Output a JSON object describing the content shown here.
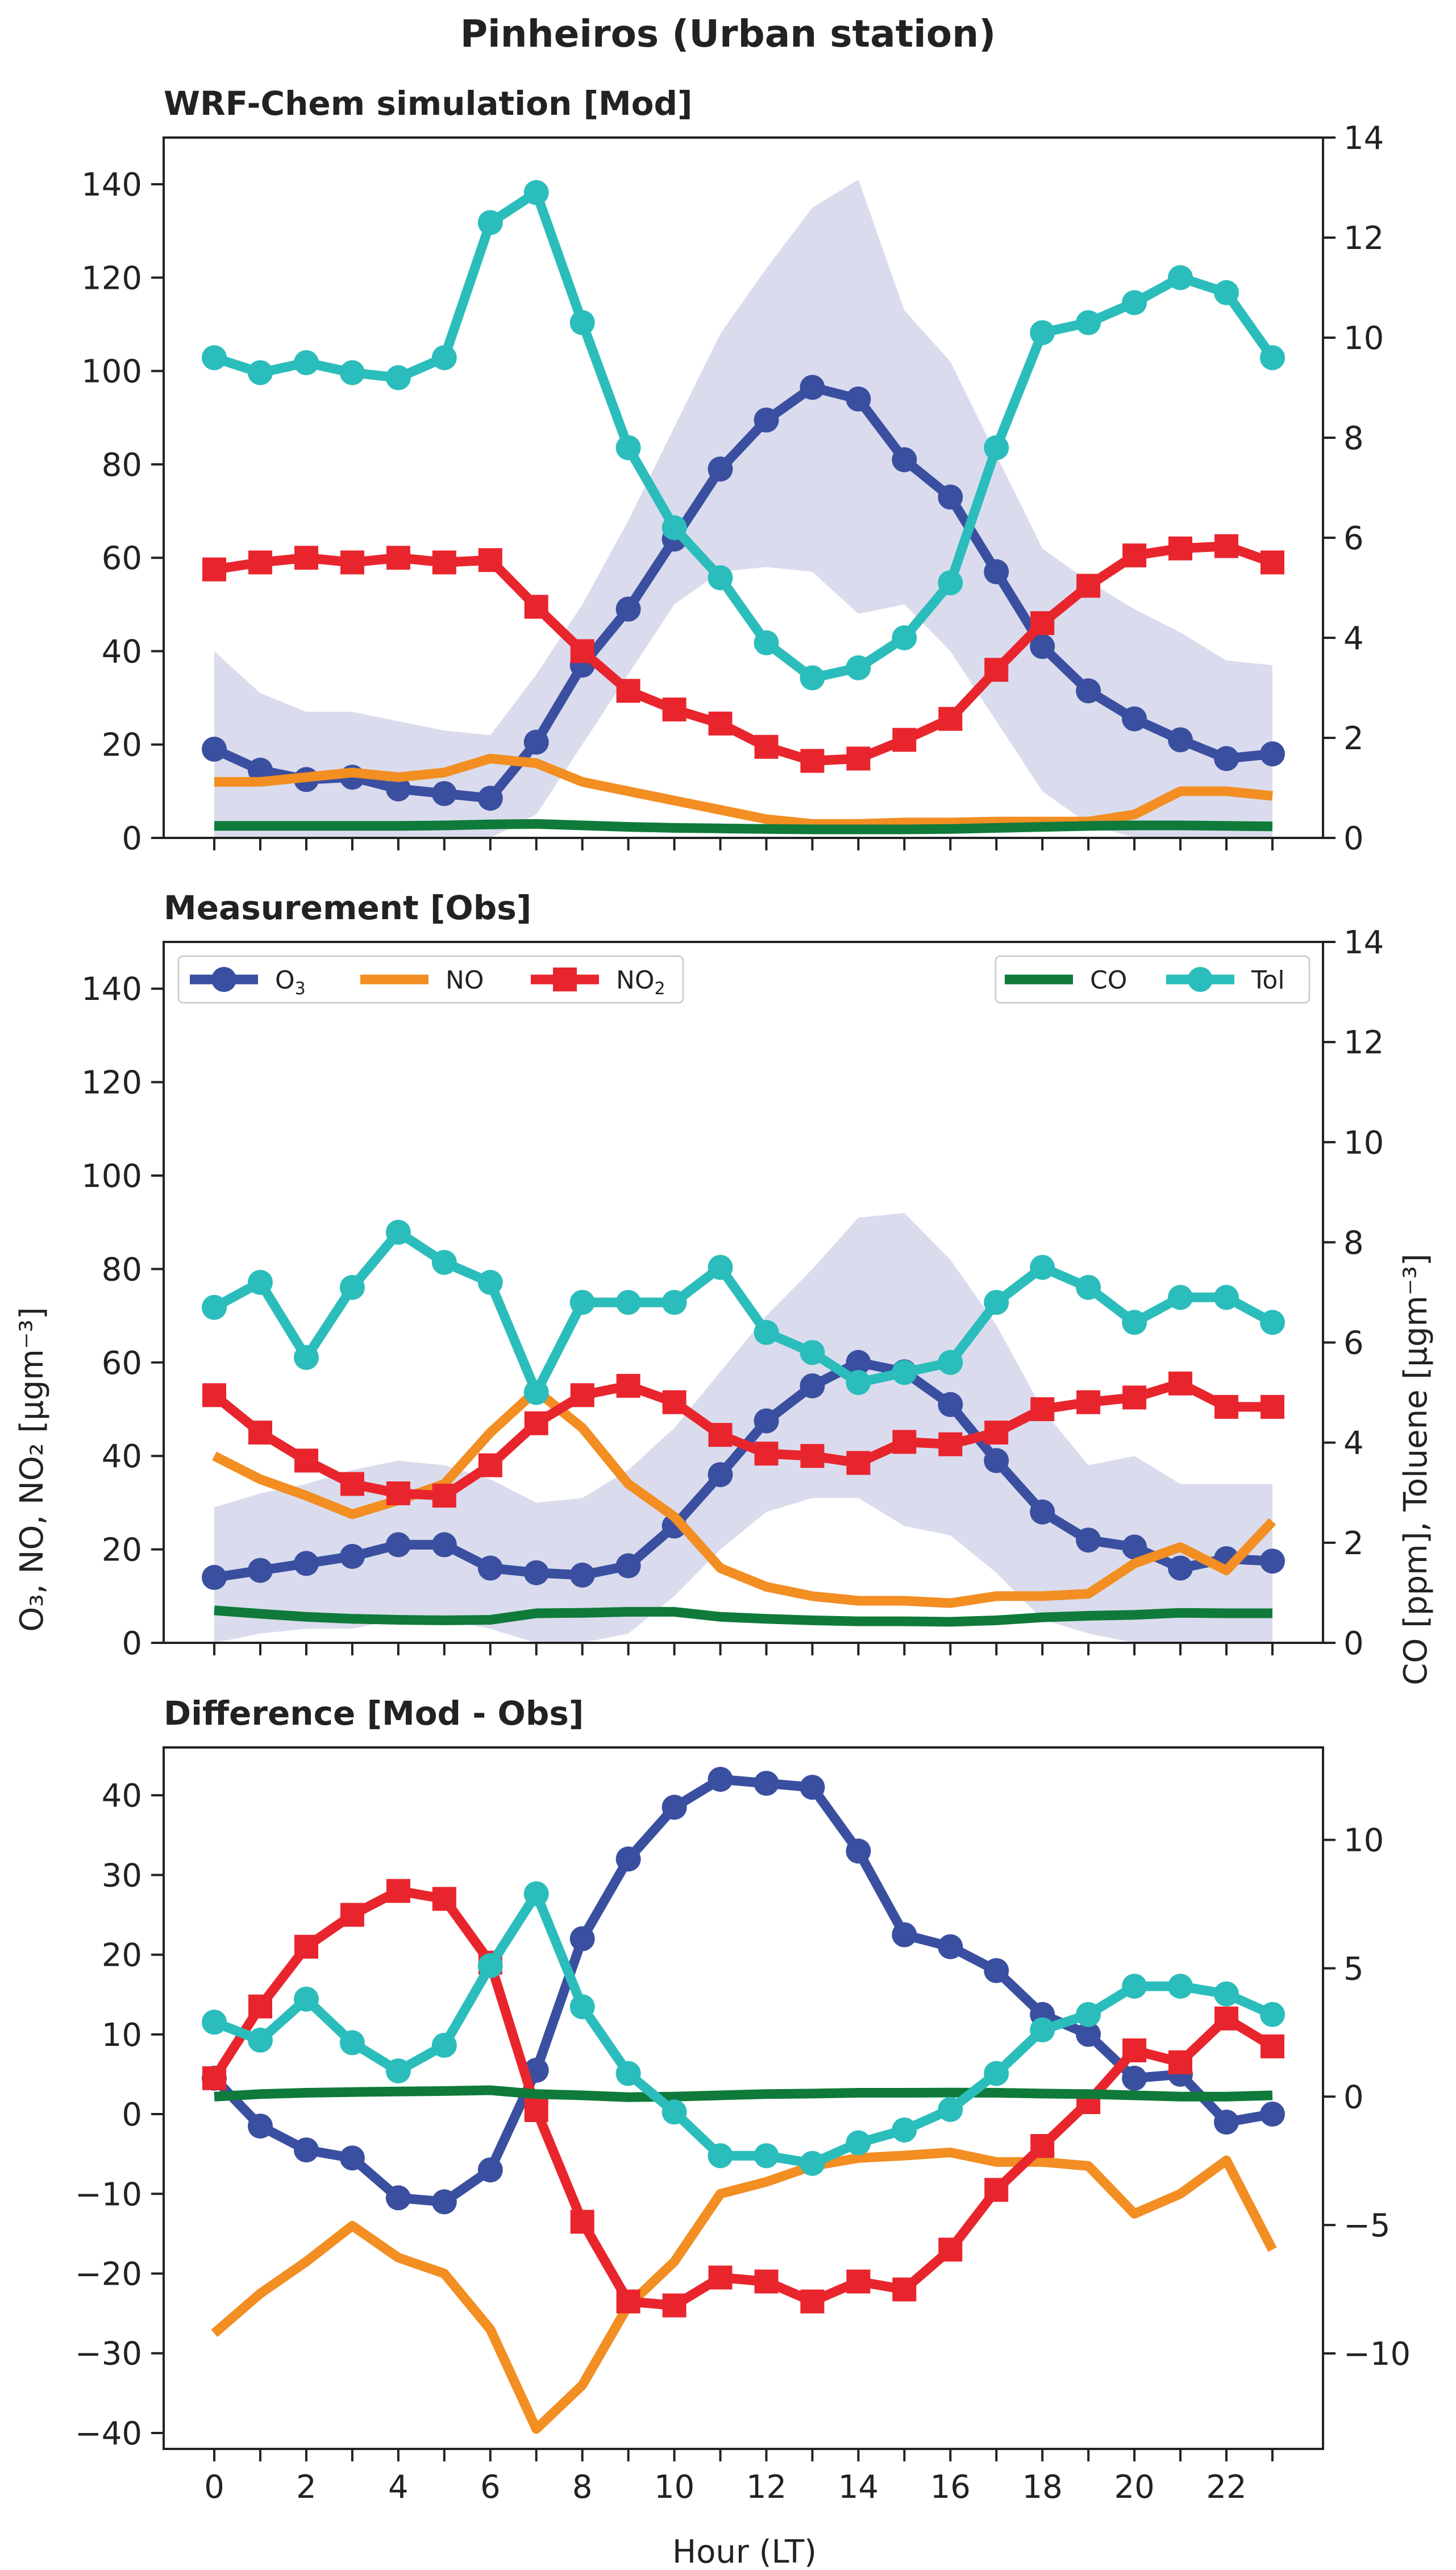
{
  "figure_title": "Pinheiros (Urban station)",
  "colors": {
    "O3": "#3a4fa0",
    "NO": "#f28e22",
    "NO2": "#e8252d",
    "CO": "#0f7a3a",
    "Tol": "#2bbdbb",
    "band": "#dadcee"
  },
  "legend": [
    {
      "key": "O3",
      "label": "O",
      "sub": "3",
      "marker": "circle"
    },
    {
      "key": "NO",
      "label": "NO",
      "sub": "",
      "marker": "none"
    },
    {
      "key": "NO2",
      "label": "NO",
      "sub": "2",
      "marker": "square"
    },
    {
      "key": "CO",
      "label": "CO",
      "sub": "",
      "marker": "none"
    },
    {
      "key": "Tol",
      "label": "Tol",
      "sub": "",
      "marker": "circle"
    }
  ],
  "shared_labels": {
    "xlabel": "Hour (LT)",
    "ylabel_left": "O₃, NO, NO₂ [μgm⁻³]",
    "ylabel_right": "CO [ppm], Toluene [μgm⁻³]"
  },
  "chart_data": [
    {
      "type": "line",
      "title": "WRF-Chem simulation [Mod]",
      "xlabel": "Hour (LT)",
      "x": [
        0,
        1,
        2,
        3,
        4,
        5,
        6,
        7,
        8,
        9,
        10,
        11,
        12,
        13,
        14,
        15,
        16,
        17,
        18,
        19,
        20,
        21,
        22,
        23
      ],
      "xlim": [
        -1.1,
        24.1
      ],
      "xticks": [
        0,
        2,
        4,
        6,
        8,
        10,
        12,
        14,
        16,
        18,
        20,
        22
      ],
      "ylim_left": [
        0,
        150
      ],
      "yticks_left": [
        0,
        20,
        40,
        60,
        80,
        100,
        120,
        140
      ],
      "ylim_right": [
        0,
        14
      ],
      "yticks_right": [
        0,
        2,
        4,
        6,
        8,
        10,
        12,
        14
      ],
      "band": {
        "series": "O3",
        "lower": [
          0,
          0,
          0,
          0,
          0,
          0,
          0,
          5,
          20,
          35,
          50,
          57,
          58,
          57,
          48,
          50,
          40,
          25,
          10,
          3,
          0,
          0,
          0,
          0
        ],
        "upper": [
          40,
          31,
          27,
          27,
          25,
          23,
          22,
          35,
          50,
          68,
          88,
          108,
          122,
          135,
          141,
          113,
          102,
          82,
          62,
          55,
          49,
          44,
          38,
          37
        ]
      },
      "series": [
        {
          "name": "O3",
          "axis": "left",
          "marker": "circle",
          "values": [
            19,
            14.5,
            12.5,
            13,
            10.5,
            9.5,
            8.5,
            20.5,
            37,
            49,
            64,
            79,
            89.5,
            96.5,
            94,
            81,
            73,
            57,
            41,
            31.5,
            25.5,
            21,
            17,
            18
          ]
        },
        {
          "name": "NO",
          "axis": "left",
          "marker": "none",
          "values": [
            12,
            12,
            13,
            14,
            13,
            14,
            17,
            16,
            12,
            10,
            8,
            6,
            4,
            3,
            3,
            3.3,
            3.3,
            3.5,
            3.5,
            3.5,
            5,
            10,
            10,
            9
          ]
        },
        {
          "name": "NO2",
          "axis": "left",
          "marker": "square",
          "values": [
            57.5,
            59,
            60,
            59,
            60,
            59,
            59.5,
            49.5,
            40,
            31.5,
            27.5,
            24.5,
            19.5,
            16.5,
            17,
            21,
            25.5,
            36,
            46,
            54,
            60.5,
            62,
            62.5,
            59
          ]
        },
        {
          "name": "CO",
          "axis": "right",
          "marker": "none",
          "values": [
            0.24,
            0.24,
            0.24,
            0.24,
            0.24,
            0.25,
            0.27,
            0.28,
            0.25,
            0.22,
            0.2,
            0.19,
            0.18,
            0.17,
            0.17,
            0.17,
            0.18,
            0.2,
            0.22,
            0.24,
            0.25,
            0.25,
            0.24,
            0.23
          ]
        },
        {
          "name": "Tol",
          "axis": "right",
          "marker": "circle",
          "values": [
            9.6,
            9.3,
            9.5,
            9.3,
            9.2,
            9.6,
            12.3,
            12.9,
            10.3,
            7.8,
            6.2,
            5.2,
            3.9,
            3.2,
            3.4,
            4.0,
            5.1,
            7.8,
            10.1,
            10.3,
            10.7,
            11.2,
            10.9,
            9.6
          ]
        }
      ]
    },
    {
      "type": "line",
      "title": "Measurement [Obs]",
      "ylabel_left": "O₃, NO, NO₂ [μgm⁻³]",
      "ylabel_right": "CO [ppm], Toluene [μgm⁻³]",
      "x": [
        0,
        1,
        2,
        3,
        4,
        5,
        6,
        7,
        8,
        9,
        10,
        11,
        12,
        13,
        14,
        15,
        16,
        17,
        18,
        19,
        20,
        21,
        22,
        23
      ],
      "xlim": [
        -1.1,
        24.1
      ],
      "xticks": [
        0,
        2,
        4,
        6,
        8,
        10,
        12,
        14,
        16,
        18,
        20,
        22
      ],
      "ylim_left": [
        0,
        150
      ],
      "yticks_left": [
        0,
        20,
        40,
        60,
        80,
        100,
        120,
        140
      ],
      "ylim_right": [
        0,
        14
      ],
      "yticks_right": [
        0,
        2,
        4,
        6,
        8,
        10,
        12,
        14
      ],
      "legend_position": "top",
      "band": {
        "series": "O3",
        "lower": [
          0,
          2,
          3,
          3,
          5,
          5,
          3,
          0,
          0,
          2,
          10,
          20,
          28,
          31,
          31,
          25,
          23,
          15,
          5,
          2,
          0,
          0,
          0,
          0
        ],
        "upper": [
          29,
          32,
          34,
          37,
          39,
          38,
          35,
          30,
          31,
          37,
          46,
          58,
          70,
          80,
          91,
          92,
          82,
          68,
          50,
          38,
          40,
          34,
          34,
          34
        ]
      },
      "series": [
        {
          "name": "O3",
          "axis": "left",
          "marker": "circle",
          "values": [
            14,
            15.5,
            17,
            18.5,
            21,
            21,
            16,
            15,
            14.5,
            16.5,
            25,
            36,
            47.5,
            55,
            60,
            58,
            51,
            39,
            28,
            22,
            20.5,
            16,
            18,
            17.5
          ]
        },
        {
          "name": "NO",
          "axis": "left",
          "marker": "none",
          "values": [
            40,
            35,
            31.5,
            27.5,
            30.5,
            34,
            45,
            54,
            46,
            34,
            27,
            16,
            12,
            10,
            9,
            9,
            8.5,
            10,
            10,
            10.5,
            17,
            20.5,
            15.5,
            26
          ]
        },
        {
          "name": "NO2",
          "axis": "left",
          "marker": "square",
          "values": [
            53,
            45,
            39,
            34,
            32,
            31.5,
            38,
            47,
            53,
            55,
            51.5,
            44.5,
            40.5,
            40,
            38.5,
            43,
            42.5,
            45,
            50,
            51.5,
            52.5,
            55.5,
            50.5,
            50.5
          ]
        },
        {
          "name": "CO",
          "axis": "right",
          "marker": "none",
          "values": [
            0.65,
            0.58,
            0.52,
            0.48,
            0.46,
            0.45,
            0.46,
            0.59,
            0.6,
            0.62,
            0.62,
            0.52,
            0.48,
            0.45,
            0.43,
            0.43,
            0.42,
            0.45,
            0.51,
            0.54,
            0.56,
            0.6,
            0.59,
            0.59
          ]
        },
        {
          "name": "Tol",
          "axis": "right",
          "marker": "circle",
          "values": [
            6.7,
            7.2,
            5.7,
            7.1,
            8.2,
            7.6,
            7.2,
            5.0,
            6.8,
            6.8,
            6.8,
            7.5,
            6.2,
            5.8,
            5.2,
            5.4,
            5.6,
            6.8,
            7.5,
            7.1,
            6.4,
            6.9,
            6.9,
            6.4
          ]
        }
      ]
    },
    {
      "type": "line",
      "title": "Difference [Mod - Obs]",
      "xlabel": "Hour (LT)",
      "x": [
        0,
        1,
        2,
        3,
        4,
        5,
        6,
        7,
        8,
        9,
        10,
        11,
        12,
        13,
        14,
        15,
        16,
        17,
        18,
        19,
        20,
        21,
        22,
        23
      ],
      "xlim": [
        -1.1,
        24.1
      ],
      "xticks": [
        0,
        2,
        4,
        6,
        8,
        10,
        12,
        14,
        16,
        18,
        20,
        22
      ],
      "ylim_left": [
        -42,
        46
      ],
      "yticks_left": [
        -40,
        -30,
        -20,
        -10,
        0,
        10,
        20,
        30,
        40
      ],
      "ylim_right": [
        -13.72,
        13.6
      ],
      "yticks_right": [
        -10,
        -5,
        0,
        5,
        10
      ],
      "series": [
        {
          "name": "O3",
          "axis": "left",
          "marker": "circle",
          "values": [
            4.5,
            -1.5,
            -4.5,
            -5.5,
            -10.5,
            -11,
            -7,
            5.5,
            22,
            32,
            38.5,
            42,
            41.5,
            41,
            33,
            22.5,
            21,
            18,
            12.5,
            10,
            4.5,
            5,
            -1,
            0
          ]
        },
        {
          "name": "NO",
          "axis": "left",
          "marker": "none",
          "values": [
            -27.5,
            -22.5,
            -18.5,
            -14,
            -18,
            -20,
            -27,
            -39.5,
            -34,
            -24,
            -18.5,
            -10,
            -8.5,
            -6.5,
            -5.5,
            -5.2,
            -4.8,
            -6,
            -6,
            -6.5,
            -12.5,
            -10,
            -5.8,
            -17
          ]
        },
        {
          "name": "NO2",
          "axis": "left",
          "marker": "square",
          "values": [
            4.5,
            13.5,
            21,
            25,
            28,
            27,
            19,
            0.5,
            -13.5,
            -23.5,
            -24,
            -20.5,
            -21,
            -23.5,
            -21,
            -22,
            -17,
            -9.5,
            -4,
            1.5,
            8,
            6.5,
            12,
            8.5
          ]
        },
        {
          "name": "CO",
          "axis": "right",
          "marker": "none",
          "values": [
            0,
            0.1,
            0.15,
            0.18,
            0.2,
            0.22,
            0.25,
            0.1,
            0.05,
            -0.02,
            0.0,
            0.05,
            0.1,
            0.12,
            0.15,
            0.15,
            0.16,
            0.15,
            0.12,
            0.1,
            0.05,
            0.0,
            0.0,
            0.05
          ]
        },
        {
          "name": "Tol",
          "axis": "right",
          "marker": "circle",
          "values": [
            2.9,
            2.2,
            3.8,
            2.1,
            1.0,
            2.0,
            5.1,
            7.9,
            3.5,
            0.9,
            -0.6,
            -2.3,
            -2.3,
            -2.6,
            -1.8,
            -1.3,
            -0.5,
            0.9,
            2.6,
            3.2,
            4.3,
            4.3,
            4.0,
            3.2
          ]
        }
      ]
    }
  ]
}
